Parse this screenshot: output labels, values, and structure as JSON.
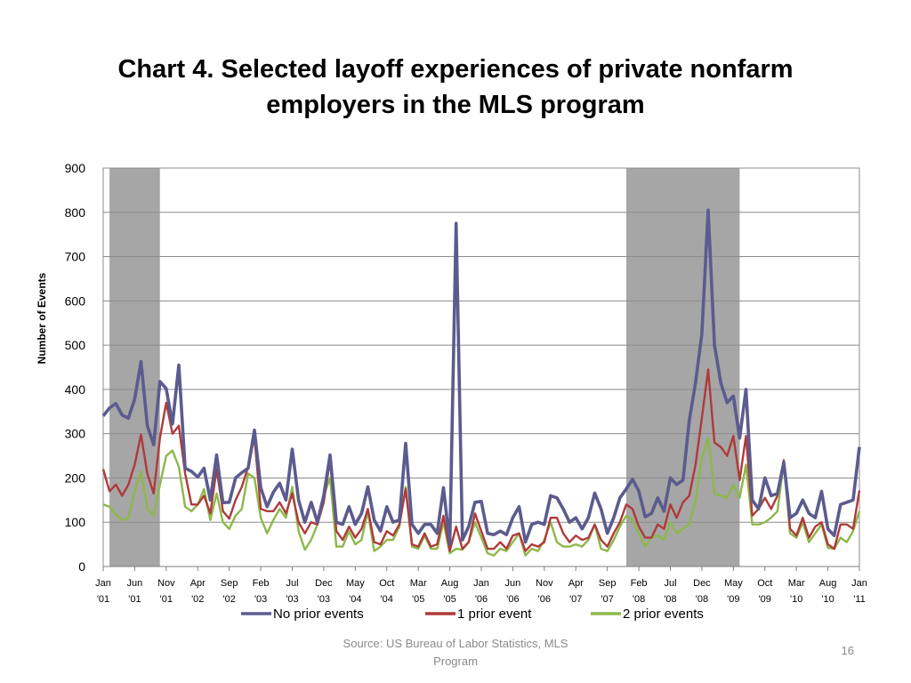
{
  "slide": {
    "title_line1": "Chart 4.  Selected layoff experiences of private nonfarm",
    "title_line2": "employers in the MLS program",
    "source": "Source: US Bureau of Labor Statistics, MLS Program",
    "page_number": "16"
  },
  "chart_data": {
    "type": "line",
    "title": "",
    "xlabel": "",
    "ylabel": "Number of Events",
    "ylim": [
      0,
      900
    ],
    "yticks": [
      0,
      100,
      200,
      300,
      400,
      500,
      600,
      700,
      800,
      900
    ],
    "grid": true,
    "legend_position": "bottom",
    "x_start": "2001-01",
    "x_end": "2011-01",
    "x_tick_labels": [
      [
        "Jan",
        "'01"
      ],
      [
        "Jun",
        "'01"
      ],
      [
        "Nov",
        "'01"
      ],
      [
        "Apr",
        "'02"
      ],
      [
        "Sep",
        "'02"
      ],
      [
        "Feb",
        "'03"
      ],
      [
        "Jul",
        "'03"
      ],
      [
        "Dec",
        "'03"
      ],
      [
        "May",
        "'04"
      ],
      [
        "Oct",
        "'04"
      ],
      [
        "Mar",
        "'05"
      ],
      [
        "Aug",
        "'05"
      ],
      [
        "Jan",
        "'06"
      ],
      [
        "Jun",
        "'06"
      ],
      [
        "Nov",
        "'06"
      ],
      [
        "Apr",
        "'07"
      ],
      [
        "Sep",
        "'07"
      ],
      [
        "Feb",
        "'08"
      ],
      [
        "Jul",
        "'08"
      ],
      [
        "Dec",
        "'08"
      ],
      [
        "May",
        "'09"
      ],
      [
        "Oct",
        "'09"
      ],
      [
        "Mar",
        "'10"
      ],
      [
        "Aug",
        "'10"
      ],
      [
        "Jan",
        "'11"
      ]
    ],
    "recession_shading": [
      {
        "start": "2001-02",
        "end": "2001-10",
        "color": "#a6a6a6"
      },
      {
        "start": "2007-12",
        "end": "2009-06",
        "color": "#a6a6a6"
      }
    ],
    "series": [
      {
        "name": "No prior events",
        "color": "#5b5b8f",
        "values": [
          340,
          358,
          368,
          342,
          335,
          378,
          463,
          318,
          275,
          418,
          402,
          322,
          455,
          222,
          215,
          202,
          222,
          150,
          252,
          144,
          145,
          200,
          212,
          222,
          308,
          178,
          135,
          168,
          188,
          150,
          265,
          150,
          100,
          145,
          100,
          160,
          252,
          100,
          95,
          135,
          95,
          120,
          180,
          105,
          80,
          135,
          100,
          105,
          278,
          95,
          75,
          95,
          95,
          75,
          178,
          50,
          775,
          60,
          90,
          145,
          147,
          75,
          72,
          80,
          72,
          110,
          135,
          55,
          95,
          100,
          95,
          160,
          155,
          130,
          100,
          110,
          85,
          110,
          166,
          130,
          75,
          110,
          155,
          175,
          197,
          170,
          112,
          120,
          155,
          125,
          200,
          185,
          195,
          330,
          415,
          525,
          805,
          500,
          415,
          370,
          385,
          290,
          400,
          150,
          130,
          200,
          160,
          165,
          235,
          110,
          120,
          150,
          120,
          110,
          170,
          85,
          70,
          140,
          145,
          150,
          270
        ]
      },
      {
        "name": "1 prior event",
        "color": "#b03a3a",
        "values": [
          220,
          170,
          185,
          160,
          185,
          230,
          298,
          210,
          165,
          290,
          370,
          300,
          318,
          210,
          140,
          140,
          160,
          120,
          220,
          125,
          108,
          150,
          180,
          225,
          292,
          130,
          125,
          125,
          145,
          120,
          165,
          100,
          75,
          100,
          95,
          145,
          240,
          80,
          60,
          90,
          65,
          85,
          130,
          55,
          50,
          80,
          70,
          95,
          175,
          50,
          45,
          75,
          45,
          50,
          115,
          35,
          90,
          40,
          55,
          120,
          80,
          40,
          40,
          55,
          40,
          70,
          75,
          35,
          50,
          45,
          55,
          110,
          110,
          75,
          55,
          70,
          60,
          65,
          95,
          60,
          45,
          75,
          100,
          140,
          130,
          90,
          65,
          65,
          95,
          85,
          140,
          110,
          145,
          160,
          230,
          335,
          445,
          280,
          270,
          250,
          295,
          195,
          295,
          115,
          130,
          155,
          130,
          160,
          240,
          85,
          70,
          110,
          65,
          90,
          100,
          50,
          40,
          95,
          95,
          85,
          172
        ]
      },
      {
        "name": "2 prior events",
        "color": "#8db84a",
        "values": [
          140,
          135,
          118,
          105,
          110,
          170,
          215,
          130,
          115,
          185,
          250,
          262,
          225,
          135,
          125,
          140,
          175,
          105,
          165,
          100,
          85,
          115,
          130,
          210,
          200,
          110,
          75,
          105,
          130,
          110,
          180,
          80,
          38,
          60,
          95,
          160,
          200,
          45,
          45,
          80,
          50,
          60,
          125,
          35,
          45,
          60,
          60,
          90,
          180,
          45,
          40,
          70,
          40,
          40,
          100,
          30,
          40,
          38,
          55,
          100,
          65,
          30,
          25,
          40,
          35,
          55,
          75,
          25,
          40,
          35,
          60,
          100,
          55,
          45,
          45,
          50,
          45,
          60,
          95,
          40,
          35,
          60,
          90,
          115,
          105,
          75,
          45,
          65,
          70,
          60,
          100,
          75,
          85,
          95,
          150,
          245,
          290,
          165,
          160,
          155,
          185,
          155,
          230,
          95,
          95,
          100,
          110,
          125,
          235,
          75,
          65,
          100,
          55,
          75,
          95,
          42,
          40,
          65,
          55,
          80,
          125
        ]
      }
    ]
  }
}
